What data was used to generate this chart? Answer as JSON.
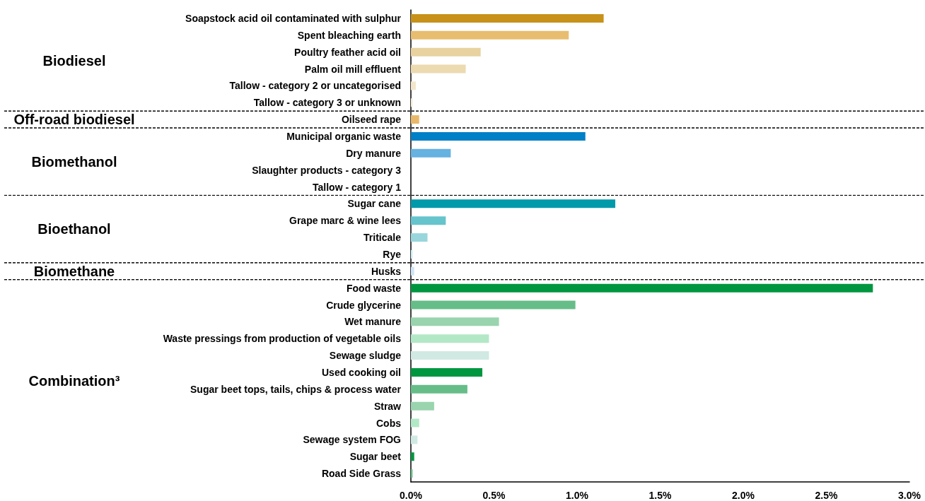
{
  "chart_data": {
    "type": "bar",
    "orientation": "horizontal",
    "categories": [
      "Soapstock acid oil contaminated with sulphur",
      "Spent bleaching earth",
      "Poultry feather acid oil",
      "Palm oil mill effluent",
      "Tallow - category 2 or uncategorised",
      "Tallow - category 3 or unknown",
      "Oilseed rape",
      "Municipal organic waste",
      "Dry manure",
      "Slaughter products - category 3",
      "Tallow - category 1",
      "Sugar cane",
      "Grape marc & wine lees",
      "Triticale",
      "Rye",
      "Husks",
      "Food waste",
      "Crude glycerine",
      "Wet manure",
      "Waste pressings from production of vegetable oils",
      "Sewage sludge",
      "Used cooking oil",
      "Sugar beet tops, tails, chips & process water",
      "Straw",
      "Cobs",
      "Sewage system FOG",
      "Sugar beet",
      "Road Side Grass"
    ],
    "values": [
      1.16,
      0.95,
      0.42,
      0.33,
      0.03,
      0.01,
      0.05,
      1.05,
      0.24,
      0,
      0,
      1.23,
      0.21,
      0.1,
      0.01,
      0.02,
      2.78,
      0.99,
      0.53,
      0.47,
      0.47,
      0.43,
      0.34,
      0.14,
      0.05,
      0.04,
      0.02,
      0.01
    ],
    "colors": [
      "#c8921a",
      "#e8bd70",
      "#e8d2a0",
      "#ecdab0",
      "#f3e6cc",
      "#f6ecda",
      "#e8b86a",
      "#0080c6",
      "#66b2e0",
      "#99cbea",
      "#cce4f4",
      "#009aaa",
      "#66c4cc",
      "#99d6dc",
      "#cceef0",
      "#d0e4f4",
      "#009640",
      "#66bd88",
      "#99d4ae",
      "#b3e8c6",
      "#d1e9e3",
      "#009640",
      "#66bd88",
      "#99d4ae",
      "#b3e8c6",
      "#d1e9e3",
      "#009640",
      "#66bd88"
    ],
    "xlim": [
      0,
      3
    ],
    "xticks": [
      {
        "value": 0,
        "label": "0.0%"
      },
      {
        "value": 0.5,
        "label": "0.5%"
      },
      {
        "value": 1,
        "label": "1.0%"
      },
      {
        "value": 1.5,
        "label": "1.5%"
      },
      {
        "value": 2,
        "label": "2.0%"
      },
      {
        "value": 2.5,
        "label": "2.5%"
      },
      {
        "value": 3,
        "label": "3.0%"
      }
    ],
    "grid": false,
    "annotations": [
      "Biodiesel",
      "Off-road biodiesel",
      "Biomethanol",
      "Bioethanol",
      "Biomethane",
      "Combination³"
    ]
  }
}
